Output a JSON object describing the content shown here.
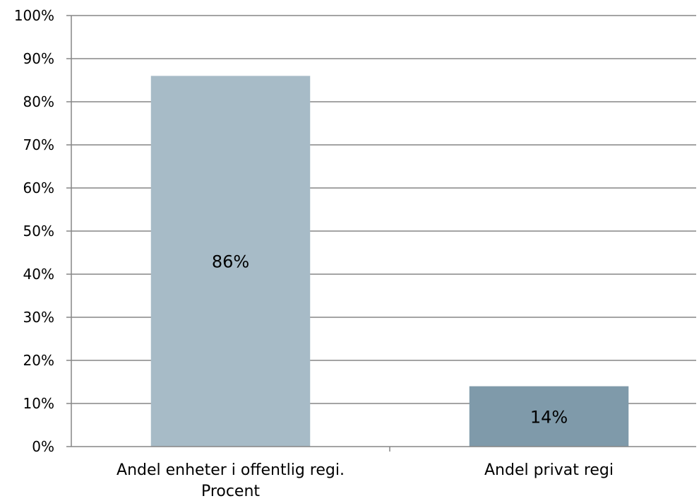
{
  "chart_data": {
    "type": "bar",
    "categories": [
      [
        "Andel enheter i offentlig regi.",
        "Procent"
      ],
      [
        "Andel privat regi"
      ]
    ],
    "values": [
      86,
      14
    ],
    "data_labels": [
      "86%",
      "14%"
    ],
    "bar_colors": [
      "#a7bbc7",
      "#7f9aaa"
    ],
    "y_ticks": [
      "0%",
      "10%",
      "20%",
      "30%",
      "40%",
      "50%",
      "60%",
      "70%",
      "80%",
      "90%",
      "100%"
    ],
    "ylim": [
      0,
      100
    ],
    "grid": true,
    "gridline_color": "#868686",
    "axis_color": "#868686",
    "legend": "none"
  }
}
